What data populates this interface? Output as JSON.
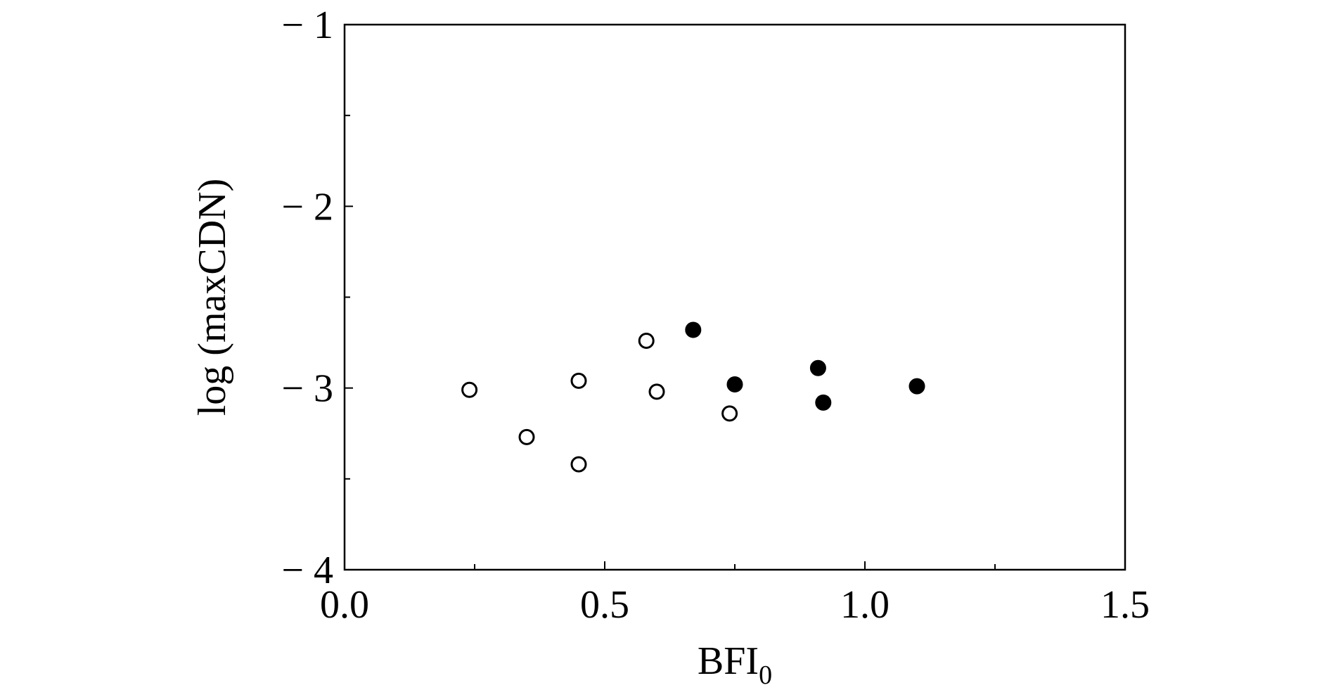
{
  "chart_data": {
    "type": "scatter",
    "title": "",
    "xlabel": "BFI",
    "xlabel_subscript": "0",
    "ylabel": "log (maxCDN)",
    "xlim": [
      0.0,
      1.5
    ],
    "ylim": [
      -4,
      -1
    ],
    "x_major_ticks": [
      0.0,
      0.5,
      1.0,
      1.5
    ],
    "x_tick_labels": [
      "0.0",
      "0.5",
      "1.0",
      "1.5"
    ],
    "x_minor_ticks": [
      0.25,
      0.75,
      1.25
    ],
    "y_major_ticks": [
      -1,
      -2,
      -3,
      -4
    ],
    "y_tick_labels": [
      "− 1",
      "− 2",
      "− 3",
      "− 4"
    ],
    "y_minor_ticks": [
      -1.5,
      -2.5,
      -3.5
    ],
    "grid": false,
    "legend": "none",
    "series": [
      {
        "marker": "open-circle",
        "color": "#000000",
        "points": [
          {
            "x": 0.24,
            "y": -3.01
          },
          {
            "x": 0.35,
            "y": -3.27
          },
          {
            "x": 0.45,
            "y": -2.96
          },
          {
            "x": 0.45,
            "y": -3.42
          },
          {
            "x": 0.58,
            "y": -2.74
          },
          {
            "x": 0.6,
            "y": -3.02
          },
          {
            "x": 0.74,
            "y": -3.14
          }
        ]
      },
      {
        "marker": "filled-circle",
        "color": "#000000",
        "points": [
          {
            "x": 0.67,
            "y": -2.68
          },
          {
            "x": 0.75,
            "y": -2.98
          },
          {
            "x": 0.91,
            "y": -2.89
          },
          {
            "x": 0.92,
            "y": -3.08
          },
          {
            "x": 1.1,
            "y": -2.99
          }
        ]
      }
    ]
  }
}
